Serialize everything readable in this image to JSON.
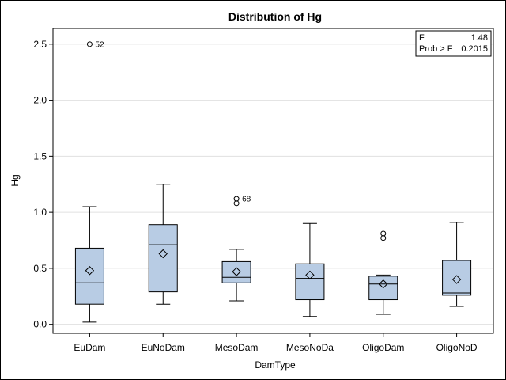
{
  "chart_data": {
    "type": "box",
    "title": "Distribution of Hg",
    "xlabel": "DamType",
    "ylabel": "Hg",
    "ylim": [
      -0.08,
      2.64
    ],
    "yticks": [
      "0.0",
      "0.5",
      "1.0",
      "1.5",
      "2.0",
      "2.5"
    ],
    "grid": true,
    "categories": [
      "EuDam",
      "EuNoDam",
      "MesoDam",
      "MesoNoDa",
      "OligoDam",
      "OligoNoD"
    ],
    "boxes": [
      {
        "category": "EuDam",
        "whisker_low": 0.02,
        "q1": 0.18,
        "median": 0.37,
        "q3": 0.68,
        "whisker_high": 1.05,
        "mean": 0.48,
        "outliers": [
          {
            "value": 2.5,
            "label": "52"
          }
        ]
      },
      {
        "category": "EuNoDam",
        "whisker_low": 0.18,
        "q1": 0.29,
        "median": 0.71,
        "q3": 0.89,
        "whisker_high": 1.25,
        "mean": 0.63,
        "outliers": []
      },
      {
        "category": "MesoDam",
        "whisker_low": 0.21,
        "q1": 0.37,
        "median": 0.42,
        "q3": 0.56,
        "whisker_high": 0.67,
        "mean": 0.47,
        "outliers": [
          {
            "value": 1.12,
            "label": "68"
          },
          {
            "value": 1.08,
            "label": ""
          }
        ]
      },
      {
        "category": "MesoNoDa",
        "whisker_low": 0.07,
        "q1": 0.22,
        "median": 0.41,
        "q3": 0.54,
        "whisker_high": 0.9,
        "mean": 0.44,
        "outliers": []
      },
      {
        "category": "OligoDam",
        "whisker_low": 0.09,
        "q1": 0.22,
        "median": 0.36,
        "q3": 0.43,
        "whisker_high": 0.44,
        "mean": 0.36,
        "outliers": [
          {
            "value": 0.81,
            "label": ""
          },
          {
            "value": 0.77,
            "label": ""
          }
        ]
      },
      {
        "category": "OligoNoD",
        "whisker_low": 0.16,
        "q1": 0.26,
        "median": 0.28,
        "q3": 0.57,
        "whisker_high": 0.91,
        "mean": 0.4,
        "outliers": []
      }
    ],
    "stats_box": {
      "placement": "top-right",
      "rows": [
        {
          "label": "F",
          "value": "1.48"
        },
        {
          "label": "Prob > F",
          "value": "0.2015"
        }
      ]
    },
    "colors": {
      "box_fill": "#b8cce4",
      "box_stroke": "#000000",
      "grid": "#e0e0e0"
    }
  }
}
